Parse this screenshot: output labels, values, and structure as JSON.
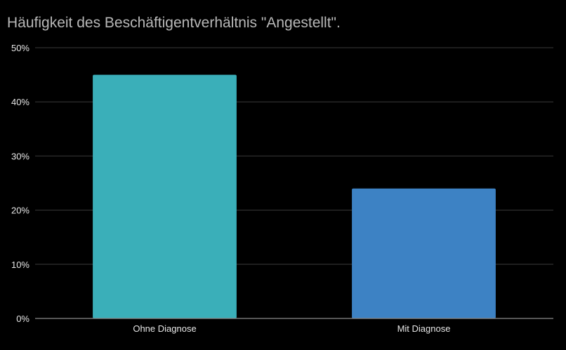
{
  "chart_data": {
    "type": "bar",
    "title": "Häufigkeit des Beschäftigentverhältnis \"Angestellt\".",
    "categories": [
      "Ohne Diagnose",
      "Mit Diagnose"
    ],
    "values": [
      45,
      24
    ],
    "value_unit": "%",
    "ylim": [
      0,
      50
    ],
    "yticks": [
      0,
      10,
      20,
      30,
      40,
      50
    ],
    "ytick_labels": [
      "0%",
      "10%",
      "20%",
      "30%",
      "40%",
      "50%"
    ],
    "xlabel": "",
    "ylabel": "",
    "grid": true,
    "legend": "none",
    "colors": [
      "#3aafb9",
      "#3d82c4"
    ],
    "background": "#000000"
  }
}
